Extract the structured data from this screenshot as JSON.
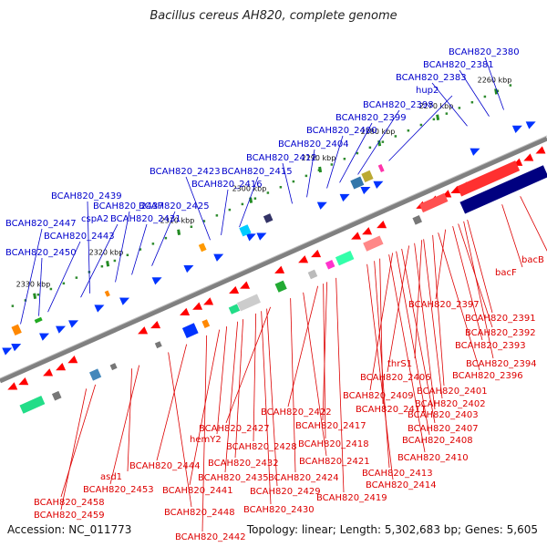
{
  "title": "Bacillus cereus AH820, complete genome",
  "accession": "Accession: NC_011773",
  "summary": "Topology: linear; Length: 5,302,683 bp; Genes: 5,605",
  "colors": {
    "forward_label": "#0000cc",
    "reverse_label": "#dd0000",
    "forward_arrow": "#0033ff",
    "reverse_arrow": "#ff0000",
    "kbp_tick": "#228b22",
    "backbone": "#808080"
  },
  "kbp_ticks": [
    "2260 kbp",
    "2270 kbp",
    "2280 kbp",
    "2290 kbp",
    "2300 kbp",
    "2310 kbp",
    "2320 kbp",
    "2330 kbp"
  ],
  "forward_labels": [
    "BCAH820_2380",
    "BCAH820_2381",
    "BCAH820_2383",
    "hup2",
    "BCAH820_2398",
    "BCAH820_2399",
    "BCAH820_2400",
    "BCAH820_2404",
    "BCAH820_2412",
    "BCAH820_2423",
    "BCAH820_2415",
    "BCAH820_2416",
    "BCAH820_2439",
    "BCAH820_2437",
    "BCAH820_2425",
    "cspA2",
    "BCAH820_2431",
    "BCAH820_2447",
    "BCAH820_2443",
    "BCAH820_2450"
  ],
  "reverse_labels": [
    "bacB",
    "bacF",
    "BCAH820_2397",
    "BCAH820_2391",
    "BCAH820_2392",
    "BCAH820_2393",
    "BCAH820_2394",
    "BCAH820_2396",
    "thrS1",
    "BCAH820_2406",
    "BCAH820_2401",
    "BCAH820_2409",
    "BCAH820_2402",
    "BCAH820_2411",
    "BCAH820_2403",
    "BCAH820_2422",
    "BCAH820_2417",
    "BCAH820_2407",
    "BCAH820_2427",
    "hemY2",
    "BCAH820_2408",
    "BCAH820_2418",
    "BCAH820_2428",
    "BCAH820_2410",
    "BCAH820_2421",
    "BCAH820_2432",
    "BCAH820_2444",
    "BCAH820_2413",
    "BCAH820_2435",
    "BCAH820_2424",
    "asd1",
    "BCAH820_2414",
    "BCAH820_2453",
    "BCAH820_2441",
    "BCAH820_2429",
    "BCAH820_2419",
    "BCAH820_2458",
    "BCAH820_2430",
    "BCAH820_2459",
    "BCAH820_2448",
    "BCAH820_2442"
  ]
}
